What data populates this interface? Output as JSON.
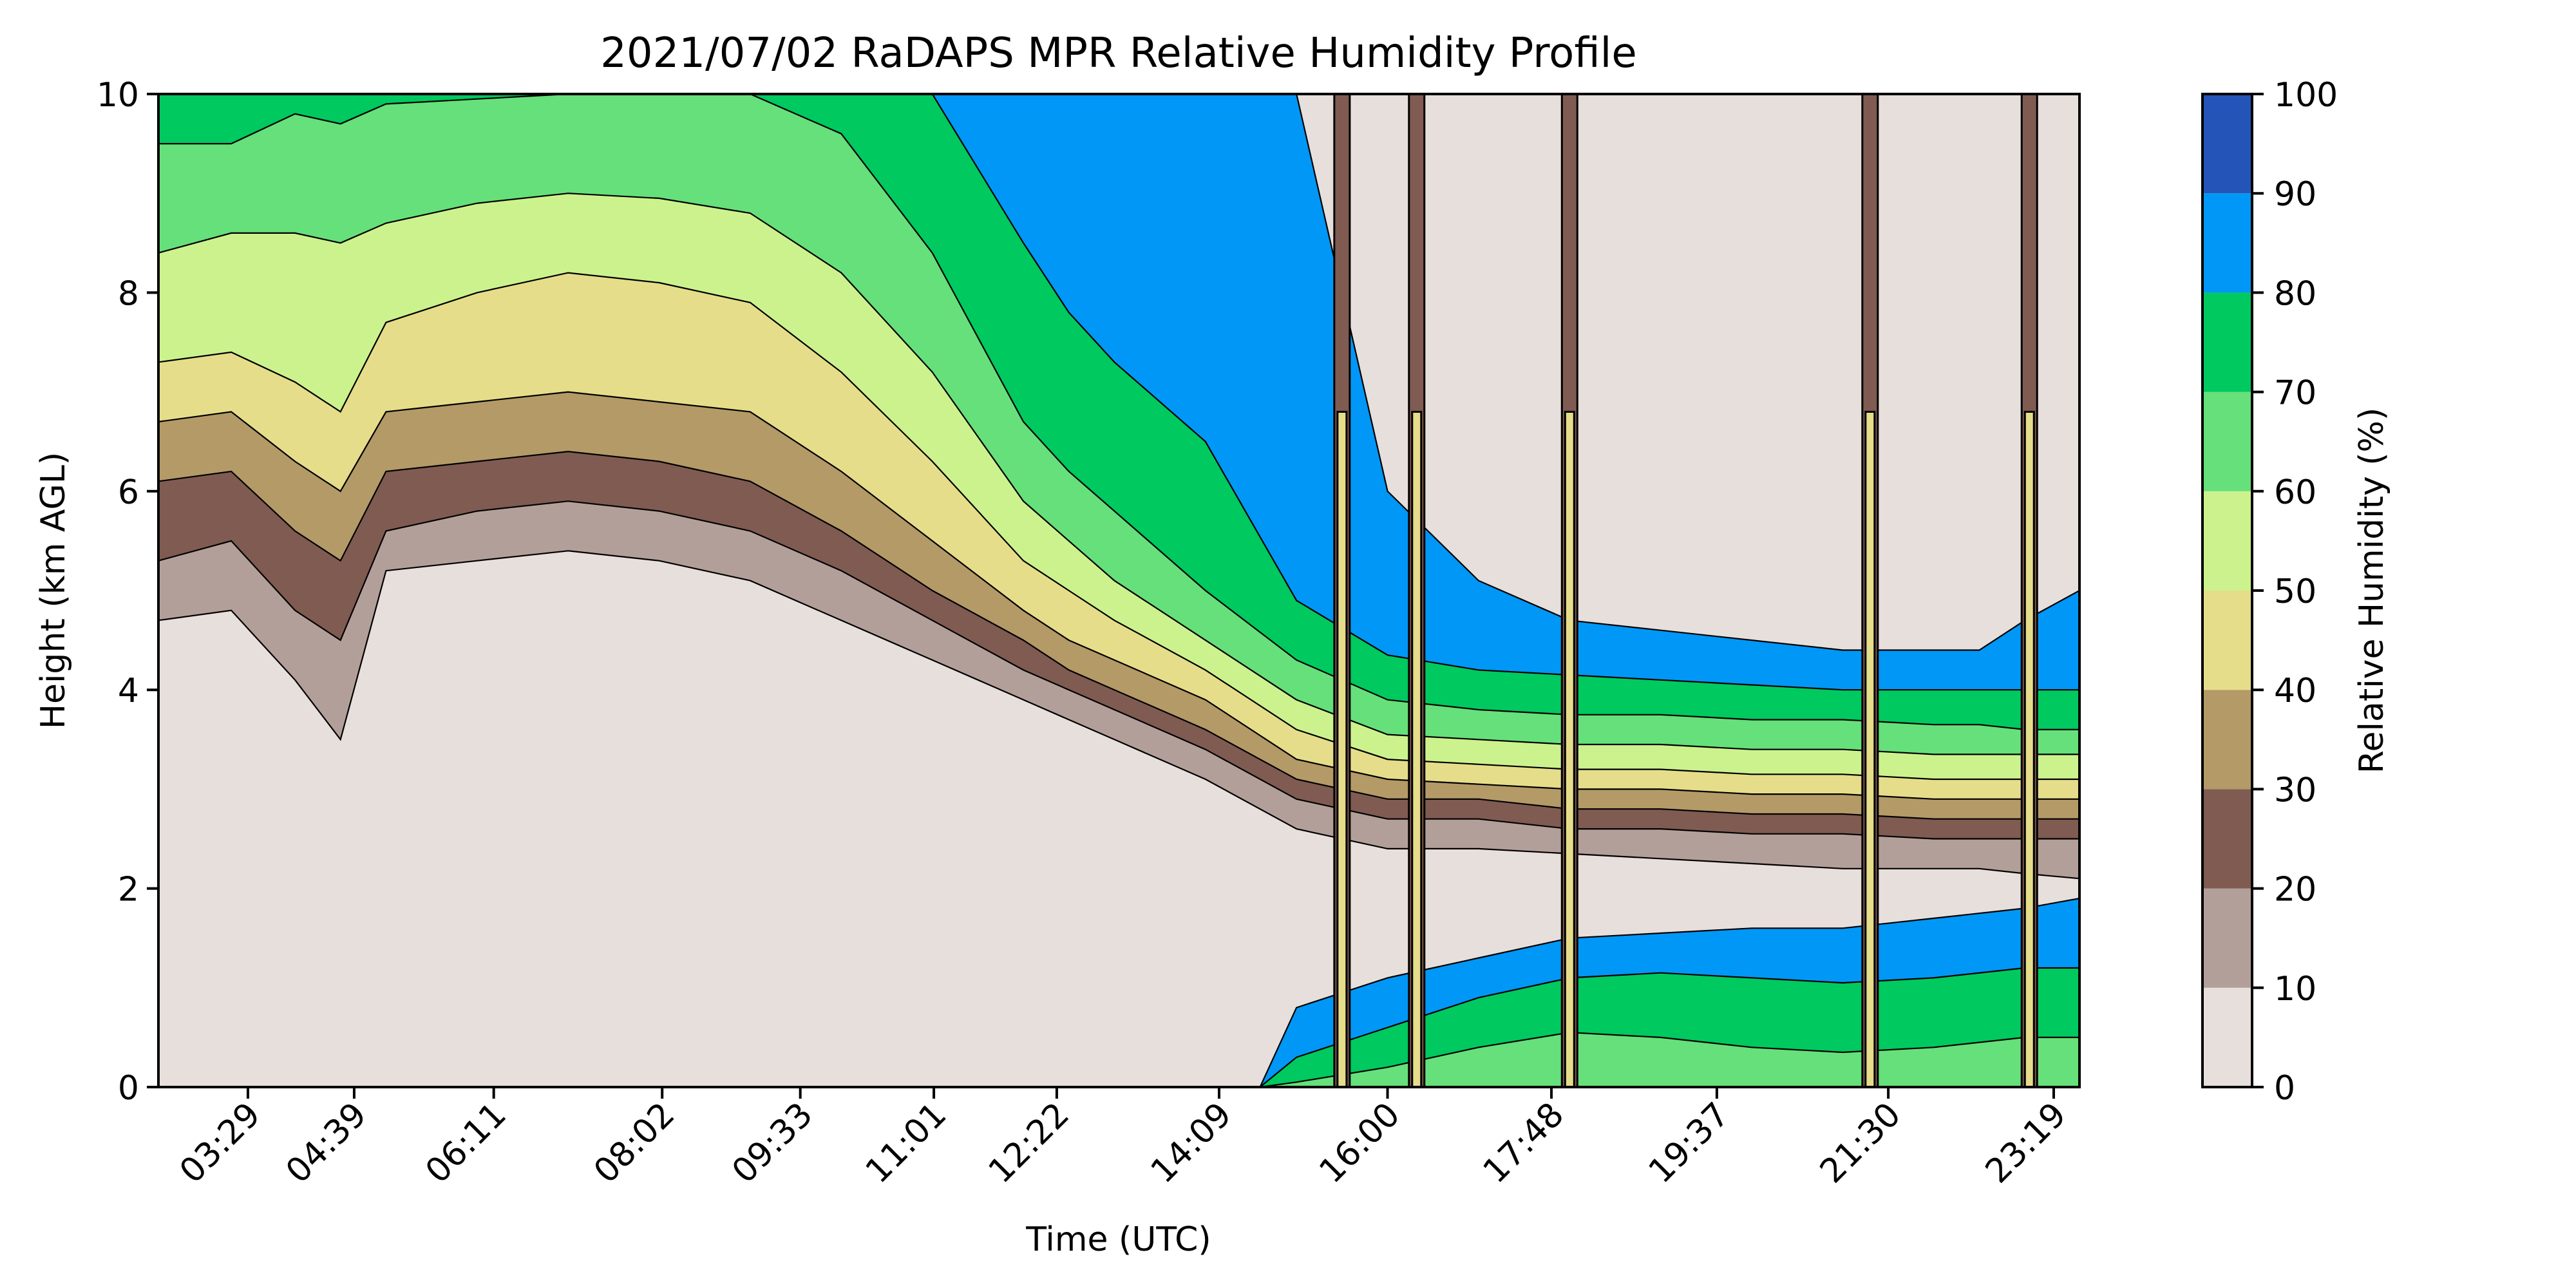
{
  "chart_data": {
    "type": "filled-contour",
    "title": "2021/07/02 RaDAPS MPR Relative Humidity Profile",
    "xlabel": "Time (UTC)",
    "ylabel": "Height (km AGL)",
    "ylim": [
      0,
      10
    ],
    "xlim_hours": [
      2.5,
      23.6
    ],
    "x_ticks": [
      {
        "label": "03:29",
        "hours": 3.483
      },
      {
        "label": "04:39",
        "hours": 4.65
      },
      {
        "label": "06:11",
        "hours": 6.183
      },
      {
        "label": "08:02",
        "hours": 8.033
      },
      {
        "label": "09:33",
        "hours": 9.55
      },
      {
        "label": "11:01",
        "hours": 11.017
      },
      {
        "label": "12:22",
        "hours": 12.367
      },
      {
        "label": "14:09",
        "hours": 14.15
      },
      {
        "label": "16:00",
        "hours": 16.0
      },
      {
        "label": "17:48",
        "hours": 17.8
      },
      {
        "label": "19:37",
        "hours": 19.617
      },
      {
        "label": "21:30",
        "hours": 21.5
      },
      {
        "label": "23:19",
        "hours": 23.317
      }
    ],
    "y_ticks": [
      0,
      2,
      4,
      6,
      8,
      10
    ],
    "colorbar": {
      "label": "Relative Humidity (%)",
      "ticks": [
        0,
        10,
        20,
        30,
        40,
        50,
        60,
        70,
        80,
        90,
        100
      ],
      "levels": [
        {
          "range": [
            0,
            10
          ],
          "color": "#e7dfdc"
        },
        {
          "range": [
            10,
            20
          ],
          "color": "#b39f99"
        },
        {
          "range": [
            20,
            30
          ],
          "color": "#7f5b52"
        },
        {
          "range": [
            30,
            40
          ],
          "color": "#b39a67"
        },
        {
          "range": [
            40,
            50
          ],
          "color": "#e6dd8b"
        },
        {
          "range": [
            50,
            60
          ],
          "color": "#ccf28e"
        },
        {
          "range": [
            60,
            70
          ],
          "color": "#66e07a"
        },
        {
          "range": [
            70,
            80
          ],
          "color": "#00c95f"
        },
        {
          "range": [
            80,
            90
          ],
          "color": "#0197f6"
        },
        {
          "range": [
            90,
            100
          ],
          "color": "#2454b7"
        }
      ]
    },
    "isoline_height_km": {
      "x_hours": [
        2.5,
        3.3,
        4.0,
        4.5,
        5.0,
        6.0,
        7.0,
        8.0,
        9.0,
        10.0,
        11.0,
        12.0,
        12.5,
        13.0,
        14.0,
        15.0,
        16.0,
        17.0,
        18.0,
        19.0,
        20.0,
        21.0,
        22.0,
        22.5,
        23.0,
        23.6
      ],
      "rh90": [
        4.7,
        4.8,
        4.1,
        3.5,
        5.2,
        5.3,
        5.4,
        5.3,
        5.1,
        4.7,
        4.3,
        3.9,
        3.7,
        3.5,
        3.1,
        2.6,
        2.4,
        2.4,
        2.35,
        2.3,
        2.25,
        2.2,
        2.2,
        2.2,
        2.15,
        2.1
      ],
      "rh80": [
        5.3,
        5.5,
        4.8,
        4.5,
        5.6,
        5.8,
        5.9,
        5.8,
        5.6,
        5.2,
        4.7,
        4.2,
        4.0,
        3.8,
        3.4,
        2.9,
        2.7,
        2.7,
        2.6,
        2.6,
        2.55,
        2.55,
        2.5,
        2.5,
        2.5,
        2.5
      ],
      "rh70": [
        6.1,
        6.2,
        5.6,
        5.3,
        6.2,
        6.3,
        6.4,
        6.3,
        6.1,
        5.6,
        5.0,
        4.5,
        4.2,
        4.0,
        3.6,
        3.1,
        2.9,
        2.9,
        2.8,
        2.8,
        2.75,
        2.75,
        2.7,
        2.7,
        2.7,
        2.7
      ],
      "rh60": [
        6.7,
        6.8,
        6.3,
        6.0,
        6.8,
        6.9,
        7.0,
        6.9,
        6.8,
        6.2,
        5.5,
        4.8,
        4.5,
        4.3,
        3.9,
        3.3,
        3.1,
        3.05,
        3.0,
        3.0,
        2.95,
        2.95,
        2.9,
        2.9,
        2.9,
        2.9
      ],
      "rh50": [
        7.3,
        7.4,
        7.1,
        6.8,
        7.7,
        8.0,
        8.2,
        8.1,
        7.9,
        7.2,
        6.3,
        5.3,
        5.0,
        4.7,
        4.2,
        3.6,
        3.3,
        3.25,
        3.2,
        3.2,
        3.15,
        3.15,
        3.1,
        3.1,
        3.1,
        3.1
      ],
      "rh40": [
        8.4,
        8.6,
        8.6,
        8.5,
        8.7,
        8.9,
        9.0,
        8.95,
        8.8,
        8.2,
        7.2,
        5.9,
        5.5,
        5.1,
        4.5,
        3.9,
        3.55,
        3.5,
        3.45,
        3.45,
        3.4,
        3.4,
        3.35,
        3.35,
        3.35,
        3.35
      ],
      "rh30": [
        9.5,
        9.5,
        9.8,
        9.7,
        9.9,
        9.95,
        10.0,
        10.0,
        10.0,
        9.6,
        8.4,
        6.7,
        6.2,
        5.8,
        5.0,
        4.3,
        3.9,
        3.8,
        3.75,
        3.75,
        3.7,
        3.7,
        3.65,
        3.65,
        3.6,
        3.6
      ],
      "rh20": [
        10.0,
        10.0,
        10.0,
        10.0,
        10.0,
        10.0,
        10.0,
        10.0,
        10.0,
        10.0,
        10.0,
        8.5,
        7.8,
        7.3,
        6.5,
        4.9,
        4.35,
        4.2,
        4.15,
        4.1,
        4.05,
        4.0,
        4.0,
        4.0,
        4.0,
        4.0
      ],
      "rh10": [
        10.0,
        10.0,
        10.0,
        10.0,
        10.0,
        10.0,
        10.0,
        10.0,
        10.0,
        10.0,
        10.0,
        10.0,
        10.0,
        10.0,
        10.0,
        10.0,
        6.0,
        5.1,
        4.7,
        4.6,
        4.5,
        4.4,
        4.4,
        4.4,
        4.7,
        5.0
      ]
    },
    "moist_surface_layer": {
      "x_hours": [
        14.6,
        15.0,
        16.0,
        17.0,
        18.0,
        19.0,
        20.0,
        21.0,
        22.0,
        23.0,
        23.6
      ],
      "rh80_top_km": [
        0.0,
        0.8,
        1.1,
        1.3,
        1.5,
        1.55,
        1.6,
        1.6,
        1.7,
        1.8,
        1.9
      ],
      "rh70_top_km": [
        0.0,
        0.3,
        0.6,
        0.9,
        1.1,
        1.15,
        1.1,
        1.05,
        1.1,
        1.2,
        1.2
      ],
      "rh60_top_km": [
        0.0,
        0.05,
        0.2,
        0.4,
        0.55,
        0.5,
        0.4,
        0.35,
        0.4,
        0.5,
        0.5
      ]
    },
    "precipitation_spikes_hours": [
      15.5,
      16.32,
      18.0,
      21.3,
      23.05
    ]
  }
}
